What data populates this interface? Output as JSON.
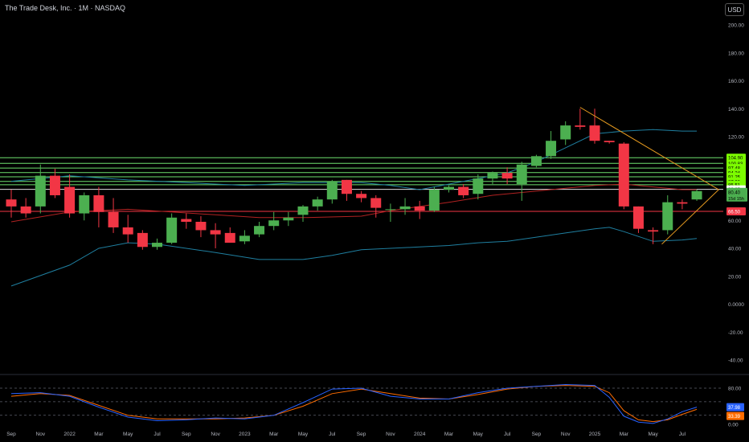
{
  "header": {
    "title": "The Trade Desk, Inc. · 1M · NASDAQ",
    "currency": "USD"
  },
  "colors": {
    "background": "#000000",
    "up": "#4caf50",
    "down": "#f23645",
    "bb_outer": "#1f7fa0",
    "bb_mid": "#b22222",
    "levels": "#6ee06e",
    "wedge": "#e69a1f",
    "stoch_k": "#2962ff",
    "stoch_d": "#ff6d00"
  },
  "chart_data": [
    {
      "type": "candlestick",
      "title": "The Trade Desk, Inc. · 1M · NASDAQ",
      "x_tick_labels": [
        "Sep",
        "Nov",
        "2022",
        "Mar",
        "May",
        "Jul",
        "Sep",
        "Nov",
        "2023",
        "Mar",
        "May",
        "Jul",
        "Sep",
        "Nov",
        "2024",
        "Mar",
        "May",
        "Jul",
        "Sep",
        "Nov",
        "2025",
        "Mar",
        "May",
        "Jul"
      ],
      "y_ticks": [
        "200.00",
        "180.00",
        "160.00",
        "140.00",
        "120.00",
        "100.00",
        "80.00",
        "60.00",
        "40.00",
        "20.00",
        "0.0000",
        "-20.00",
        "-40.00"
      ],
      "ylim": [
        -46,
        212
      ],
      "candles": [
        {
          "o": 75,
          "h": 82,
          "l": 62,
          "c": 70
        },
        {
          "o": 70,
          "h": 76,
          "l": 62,
          "c": 65
        },
        {
          "o": 70,
          "h": 100,
          "l": 65,
          "c": 92
        },
        {
          "o": 92,
          "h": 97,
          "l": 76,
          "c": 78
        },
        {
          "o": 84,
          "h": 93,
          "l": 62,
          "c": 65
        },
        {
          "o": 65,
          "h": 80,
          "l": 60,
          "c": 78
        },
        {
          "o": 78,
          "h": 84,
          "l": 55,
          "c": 66
        },
        {
          "o": 66,
          "h": 76,
          "l": 51,
          "c": 55
        },
        {
          "o": 55,
          "h": 64,
          "l": 44,
          "c": 50
        },
        {
          "o": 51,
          "h": 53,
          "l": 39,
          "c": 41
        },
        {
          "o": 41,
          "h": 47,
          "l": 39,
          "c": 44
        },
        {
          "o": 44,
          "h": 65,
          "l": 43,
          "c": 62
        },
        {
          "o": 61,
          "h": 65,
          "l": 54,
          "c": 59
        },
        {
          "o": 59,
          "h": 63,
          "l": 48,
          "c": 53
        },
        {
          "o": 53,
          "h": 58,
          "l": 40,
          "c": 50
        },
        {
          "o": 51,
          "h": 55,
          "l": 44,
          "c": 44
        },
        {
          "o": 45,
          "h": 53,
          "l": 43,
          "c": 49
        },
        {
          "o": 50,
          "h": 59,
          "l": 48,
          "c": 56
        },
        {
          "o": 56,
          "h": 66,
          "l": 53,
          "c": 60
        },
        {
          "o": 60,
          "h": 66,
          "l": 56,
          "c": 62
        },
        {
          "o": 64,
          "h": 71,
          "l": 59,
          "c": 70
        },
        {
          "o": 70,
          "h": 77,
          "l": 67,
          "c": 75
        },
        {
          "o": 75,
          "h": 89,
          "l": 72,
          "c": 88
        },
        {
          "o": 89,
          "h": 89,
          "l": 74,
          "c": 79
        },
        {
          "o": 79,
          "h": 81,
          "l": 73,
          "c": 76
        },
        {
          "o": 76,
          "h": 78,
          "l": 62,
          "c": 69
        },
        {
          "o": 68,
          "h": 72,
          "l": 59,
          "c": 68
        },
        {
          "o": 68,
          "h": 76,
          "l": 64,
          "c": 70
        },
        {
          "o": 70,
          "h": 74,
          "l": 61,
          "c": 67
        },
        {
          "o": 67,
          "h": 84,
          "l": 66,
          "c": 82
        },
        {
          "o": 82,
          "h": 85,
          "l": 80,
          "c": 84
        },
        {
          "o": 84,
          "h": 86,
          "l": 76,
          "c": 78
        },
        {
          "o": 79,
          "h": 93,
          "l": 75,
          "c": 90
        },
        {
          "o": 90,
          "h": 95,
          "l": 86,
          "c": 94
        },
        {
          "o": 94,
          "h": 98,
          "l": 86,
          "c": 90
        },
        {
          "o": 86,
          "h": 102,
          "l": 74,
          "c": 100
        },
        {
          "o": 99,
          "h": 107,
          "l": 98,
          "c": 106
        },
        {
          "o": 106,
          "h": 124,
          "l": 104,
          "c": 117
        },
        {
          "o": 118,
          "h": 131,
          "l": 114,
          "c": 128
        },
        {
          "o": 128,
          "h": 140,
          "l": 125,
          "c": 127
        },
        {
          "o": 128,
          "h": 140,
          "l": 115,
          "c": 117
        },
        {
          "o": 117,
          "h": 117,
          "l": 115,
          "c": 116
        },
        {
          "o": 115,
          "h": 116,
          "l": 68,
          "c": 70
        },
        {
          "o": 70,
          "h": 70,
          "l": 51,
          "c": 54
        },
        {
          "o": 53,
          "h": 55,
          "l": 43,
          "c": 52
        },
        {
          "o": 53,
          "h": 78,
          "l": 50,
          "c": 73
        },
        {
          "o": 73,
          "h": 75,
          "l": 68,
          "c": 72
        },
        {
          "o": 75,
          "h": 82,
          "l": 74,
          "c": 81
        }
      ],
      "bollinger": {
        "upper": [
          [
            0,
            88
          ],
          [
            4,
            92
          ],
          [
            8,
            89
          ],
          [
            12,
            87
          ],
          [
            16,
            85
          ],
          [
            20,
            87
          ],
          [
            24,
            87
          ],
          [
            26,
            85
          ],
          [
            28,
            82
          ],
          [
            30,
            86
          ],
          [
            34,
            94
          ],
          [
            36,
            102
          ],
          [
            38,
            112
          ],
          [
            40,
            122
          ],
          [
            42,
            124
          ],
          [
            44,
            125
          ],
          [
            46,
            124
          ],
          [
            47,
            124
          ]
        ],
        "middle": [
          [
            0,
            59
          ],
          [
            4,
            66
          ],
          [
            8,
            68
          ],
          [
            11,
            66
          ],
          [
            14,
            64
          ],
          [
            17,
            62
          ],
          [
            20,
            62
          ],
          [
            24,
            63
          ],
          [
            26,
            67
          ],
          [
            28,
            70
          ],
          [
            30,
            73
          ],
          [
            33,
            78
          ],
          [
            36,
            81
          ],
          [
            38,
            83
          ],
          [
            40,
            85
          ],
          [
            42,
            86
          ],
          [
            44,
            84
          ],
          [
            46,
            82
          ],
          [
            47,
            82
          ]
        ],
        "lower": [
          [
            0,
            13
          ],
          [
            4,
            28
          ],
          [
            6,
            40
          ],
          [
            8,
            44
          ],
          [
            10,
            43
          ],
          [
            14,
            37
          ],
          [
            17,
            32
          ],
          [
            20,
            32
          ],
          [
            22,
            35
          ],
          [
            24,
            39
          ],
          [
            26,
            40
          ],
          [
            28,
            41
          ],
          [
            30,
            42
          ],
          [
            32,
            44
          ],
          [
            34,
            45
          ],
          [
            36,
            48
          ],
          [
            38,
            51
          ],
          [
            40,
            54
          ],
          [
            41,
            55
          ],
          [
            42,
            52
          ],
          [
            44,
            45
          ],
          [
            46,
            46
          ],
          [
            47,
            47
          ]
        ]
      },
      "horizontal_levels": [
        {
          "label": "104.90",
          "value": 104.9
        },
        {
          "label": "100.83",
          "value": 100.83
        },
        {
          "label": "97.48",
          "value": 97.48
        },
        {
          "label": "94.24",
          "value": 94.24
        },
        {
          "label": "91.25",
          "value": 91.25
        },
        {
          "label": "87.90",
          "value": 87.9
        },
        {
          "label": "85.51",
          "value": 85.51
        }
      ],
      "white_level": {
        "label": "82.25",
        "value": 82.25
      },
      "red_level": {
        "label": "66.50",
        "value": 66.5
      },
      "last_price": {
        "label": "80.40",
        "countdown": "15d 15h",
        "value": 80.4
      },
      "wedge": {
        "top": [
          39,
          141
        ],
        "bottom": [
          44.6,
          43
        ],
        "apex": [
          48.5,
          82
        ]
      }
    },
    {
      "type": "line",
      "name": "stochastic",
      "y_ticks": [
        "80.00",
        "20.00",
        "0.00"
      ],
      "levels": [
        80,
        50,
        20
      ],
      "ylim": [
        -4,
        100
      ],
      "k_label": "37.98",
      "d_label": "33.39",
      "k": [
        [
          0,
          68
        ],
        [
          2,
          70
        ],
        [
          4,
          62
        ],
        [
          6,
          38
        ],
        [
          8,
          16
        ],
        [
          10,
          8
        ],
        [
          12,
          10
        ],
        [
          14,
          14
        ],
        [
          16,
          12
        ],
        [
          18,
          20
        ],
        [
          20,
          48
        ],
        [
          22,
          78
        ],
        [
          24,
          80
        ],
        [
          26,
          62
        ],
        [
          28,
          56
        ],
        [
          30,
          56
        ],
        [
          32,
          70
        ],
        [
          34,
          80
        ],
        [
          36,
          84
        ],
        [
          38,
          88
        ],
        [
          40,
          86
        ],
        [
          41,
          60
        ],
        [
          42,
          18
        ],
        [
          43,
          5
        ],
        [
          44,
          2
        ],
        [
          45,
          12
        ],
        [
          46,
          28
        ],
        [
          47,
          38
        ]
      ],
      "d": [
        [
          0,
          62
        ],
        [
          2,
          68
        ],
        [
          4,
          64
        ],
        [
          6,
          42
        ],
        [
          8,
          20
        ],
        [
          10,
          12
        ],
        [
          12,
          12
        ],
        [
          14,
          12
        ],
        [
          16,
          14
        ],
        [
          18,
          20
        ],
        [
          20,
          40
        ],
        [
          22,
          68
        ],
        [
          24,
          78
        ],
        [
          26,
          68
        ],
        [
          28,
          58
        ],
        [
          30,
          56
        ],
        [
          32,
          66
        ],
        [
          34,
          78
        ],
        [
          36,
          84
        ],
        [
          38,
          86
        ],
        [
          40,
          84
        ],
        [
          41,
          70
        ],
        [
          42,
          30
        ],
        [
          43,
          10
        ],
        [
          44,
          6
        ],
        [
          45,
          10
        ],
        [
          46,
          22
        ],
        [
          47,
          33
        ]
      ]
    }
  ]
}
